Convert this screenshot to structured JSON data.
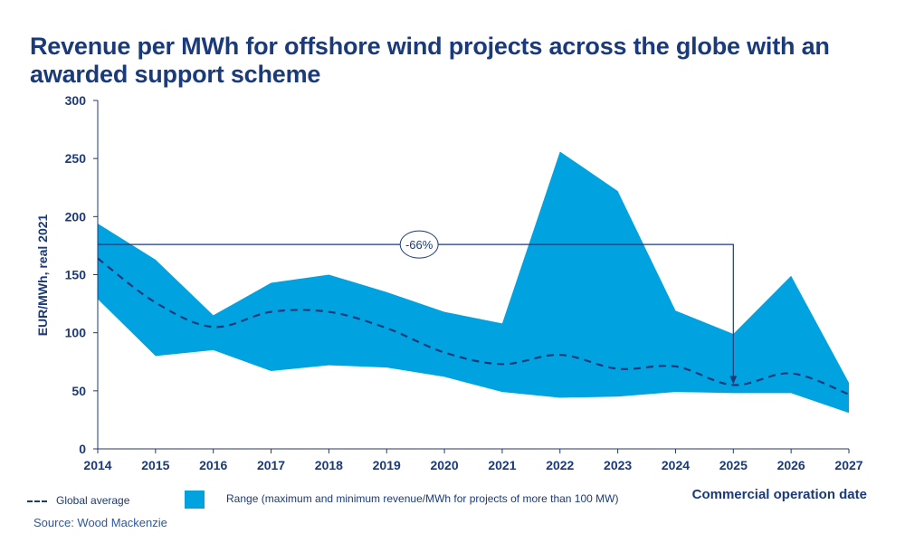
{
  "title": "Revenue per MWh for offshore wind projects across the globe with an awarded support scheme",
  "source": "Source: Wood Mackenzie",
  "colors": {
    "range": "#00a3e0",
    "axis": "#1b3a7a",
    "average": "#1b3a7a"
  },
  "chart_data": {
    "type": "area",
    "title": "Revenue per MWh for offshore wind projects across the globe with an awarded support scheme",
    "xlabel": "Commercial operation date",
    "ylabel": "EUR/MWh, real 2021",
    "ylim": [
      0,
      300
    ],
    "yticks": [
      "0",
      "50",
      "100",
      "150",
      "200",
      "250",
      "300"
    ],
    "categories": [
      "2014",
      "2015",
      "2016",
      "2017",
      "2018",
      "2019",
      "2020",
      "2021",
      "2022",
      "2023",
      "2024",
      "2025",
      "2026",
      "2027"
    ],
    "series": [
      {
        "name": "Range max",
        "values": [
          194,
          163,
          115,
          143,
          150,
          135,
          118,
          108,
          256,
          222,
          119,
          99,
          149,
          57
        ]
      },
      {
        "name": "Range min",
        "values": [
          129,
          80,
          85,
          67,
          72,
          70,
          62,
          49,
          44,
          45,
          49,
          48,
          48,
          31
        ]
      },
      {
        "name": "Global average",
        "values": [
          164,
          126,
          105,
          118,
          118,
          104,
          83,
          73,
          81,
          69,
          71,
          55,
          65,
          47
        ]
      }
    ],
    "legend": {
      "average": "Global average",
      "range": "Range (maximum and minimum revenue/MWh  for projects of more than 100 MW)",
      "placement": "bottom"
    },
    "annotation": {
      "label": "-66%",
      "from": "2014",
      "to": "2025",
      "level": 176
    }
  }
}
